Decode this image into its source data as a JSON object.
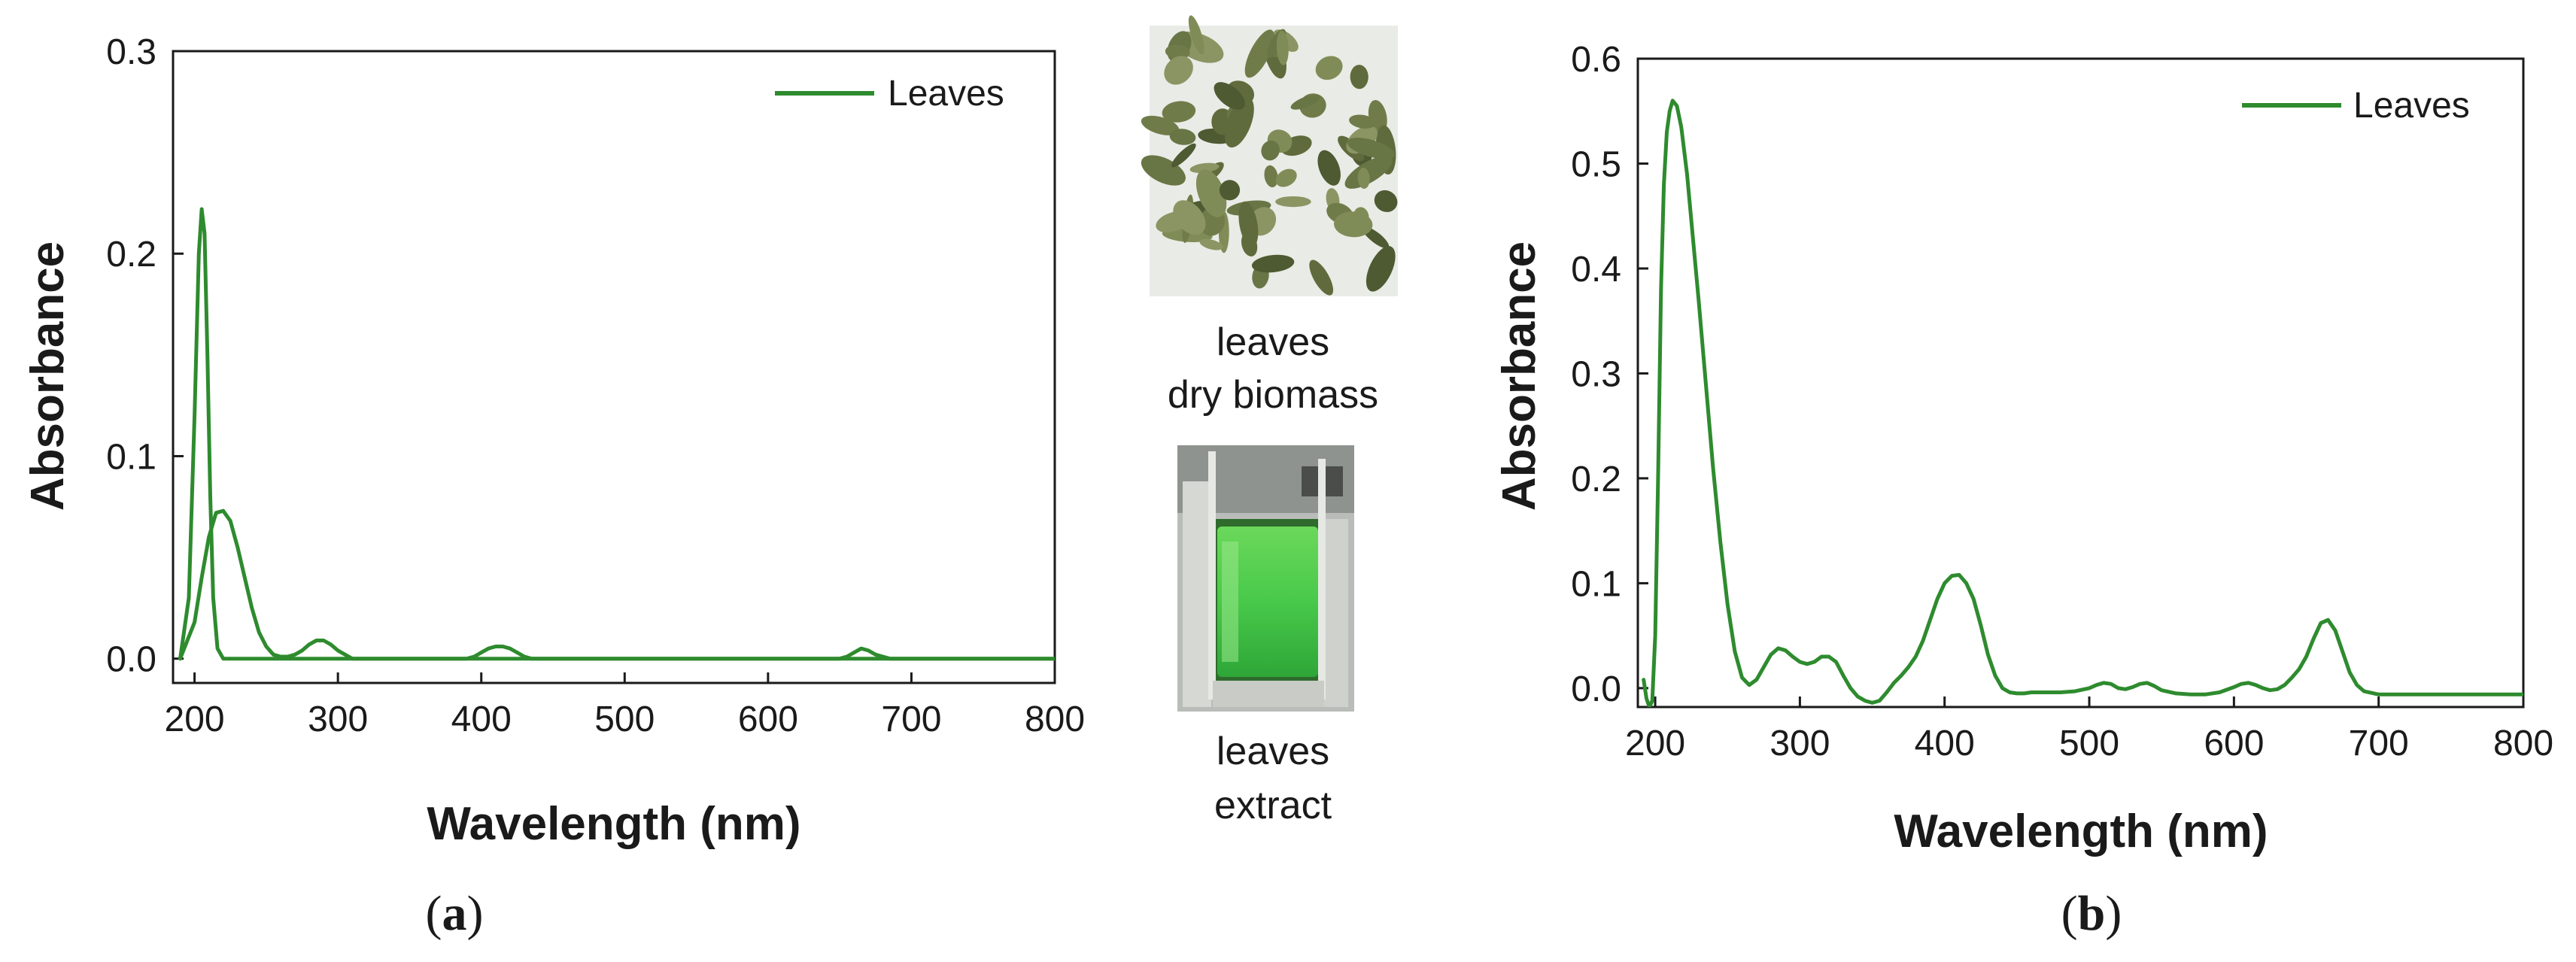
{
  "chart_data": [
    {
      "type": "line",
      "panel_label": "a",
      "xlabel": "Wavelength (nm)",
      "ylabel": "Absorbance",
      "xlim": [
        185,
        800
      ],
      "ylim": [
        -0.012,
        0.3
      ],
      "x_ticks": [
        200,
        300,
        400,
        500,
        600,
        700,
        800
      ],
      "y_ticks": [
        "0.0",
        "0.1",
        "0.2",
        "0.3"
      ],
      "y_tick_values": [
        0.0,
        0.1,
        0.2,
        0.3
      ],
      "legend": "top-right",
      "line_color": "#2e8b2e",
      "series": [
        {
          "name": "Leaves",
          "x": [
            190,
            196,
            200,
            203,
            205,
            207,
            209,
            211,
            213,
            216,
            220,
            800
          ],
          "y": [
            0.0,
            0.03,
            0.12,
            0.2,
            0.222,
            0.21,
            0.15,
            0.08,
            0.03,
            0.005,
            0.0,
            0.0
          ]
        },
        {
          "name": "",
          "x": [
            190,
            200,
            205,
            210,
            215,
            220,
            225,
            230,
            235,
            240,
            245,
            250,
            255,
            260,
            265,
            270,
            275,
            280,
            285,
            290,
            295,
            300,
            305,
            310,
            390,
            395,
            400,
            405,
            410,
            415,
            420,
            425,
            430,
            435,
            650,
            655,
            660,
            665,
            670,
            675,
            680,
            685,
            800
          ],
          "y": [
            0.0,
            0.018,
            0.04,
            0.06,
            0.072,
            0.073,
            0.068,
            0.055,
            0.04,
            0.025,
            0.013,
            0.006,
            0.002,
            0.001,
            0.001,
            0.002,
            0.004,
            0.007,
            0.009,
            0.009,
            0.007,
            0.004,
            0.002,
            0.0,
            0.0,
            0.001,
            0.003,
            0.005,
            0.006,
            0.006,
            0.005,
            0.003,
            0.001,
            0.0,
            0.0,
            0.001,
            0.003,
            0.005,
            0.004,
            0.002,
            0.001,
            0.0,
            0.0
          ]
        }
      ]
    },
    {
      "type": "line",
      "panel_label": "b",
      "xlabel": "Wavelength (nm)",
      "ylabel": "Absorbance",
      "xlim": [
        188,
        800
      ],
      "ylim": [
        -0.018,
        0.6
      ],
      "x_ticks": [
        200,
        300,
        400,
        500,
        600,
        700,
        800
      ],
      "y_ticks": [
        "0.0",
        "0.1",
        "0.2",
        "0.3",
        "0.4",
        "0.5",
        "0.6"
      ],
      "y_tick_values": [
        0.0,
        0.1,
        0.2,
        0.3,
        0.4,
        0.5,
        0.6
      ],
      "legend": "top-right",
      "line_color": "#2e8b2e",
      "series": [
        {
          "name": "Leaves",
          "x": [
            192,
            194,
            196,
            198,
            200,
            202,
            204,
            206,
            208,
            210,
            212,
            215,
            218,
            222,
            226,
            230,
            235,
            240,
            245,
            250,
            255,
            260,
            265,
            270,
            275,
            280,
            285,
            290,
            295,
            300,
            305,
            310,
            315,
            320,
            325,
            330,
            335,
            340,
            345,
            350,
            355,
            360,
            365,
            370,
            375,
            380,
            385,
            390,
            395,
            400,
            405,
            410,
            415,
            420,
            425,
            430,
            435,
            440,
            445,
            450,
            455,
            460,
            470,
            480,
            490,
            500,
            505,
            510,
            515,
            520,
            525,
            530,
            535,
            540,
            545,
            550,
            560,
            570,
            580,
            590,
            600,
            605,
            610,
            615,
            620,
            625,
            630,
            635,
            640,
            645,
            650,
            655,
            660,
            665,
            670,
            675,
            680,
            685,
            690,
            700,
            720,
            750,
            800
          ],
          "y": [
            0.008,
            -0.01,
            -0.018,
            -0.012,
            0.05,
            0.2,
            0.38,
            0.48,
            0.53,
            0.55,
            0.56,
            0.555,
            0.535,
            0.49,
            0.43,
            0.37,
            0.29,
            0.21,
            0.14,
            0.08,
            0.035,
            0.01,
            0.003,
            0.008,
            0.02,
            0.032,
            0.038,
            0.036,
            0.03,
            0.025,
            0.023,
            0.025,
            0.03,
            0.03,
            0.025,
            0.012,
            0.0,
            -0.008,
            -0.012,
            -0.014,
            -0.012,
            -0.004,
            0.005,
            0.012,
            0.02,
            0.03,
            0.045,
            0.065,
            0.085,
            0.1,
            0.107,
            0.108,
            0.1,
            0.085,
            0.06,
            0.032,
            0.012,
            0.0,
            -0.004,
            -0.005,
            -0.005,
            -0.004,
            -0.004,
            -0.004,
            -0.003,
            0.0,
            0.003,
            0.005,
            0.004,
            0.0,
            -0.001,
            0.001,
            0.004,
            0.005,
            0.002,
            -0.002,
            -0.005,
            -0.006,
            -0.006,
            -0.004,
            0.001,
            0.004,
            0.005,
            0.003,
            0.0,
            -0.002,
            -0.001,
            0.003,
            0.01,
            0.018,
            0.03,
            0.047,
            0.062,
            0.065,
            0.055,
            0.035,
            0.015,
            0.003,
            -0.003,
            -0.006,
            -0.006,
            -0.006,
            -0.006
          ]
        }
      ]
    }
  ],
  "photos": {
    "top_caption_line1": "leaves",
    "top_caption_line2": "dry biomass",
    "bottom_caption_line1": "leaves",
    "bottom_caption_line2": "extract"
  },
  "labels": {
    "a_open": "(",
    "a_letter": "a",
    "a_close": ")",
    "b_open": "(",
    "b_letter": "b",
    "b_close": ")"
  },
  "colors": {
    "line": "#2e8b2e",
    "axis": "#1a1a1a",
    "leaf_background": "#e9ebe6",
    "leaf_green": "#6f7c4a",
    "extract_green": "#4fd04a"
  }
}
